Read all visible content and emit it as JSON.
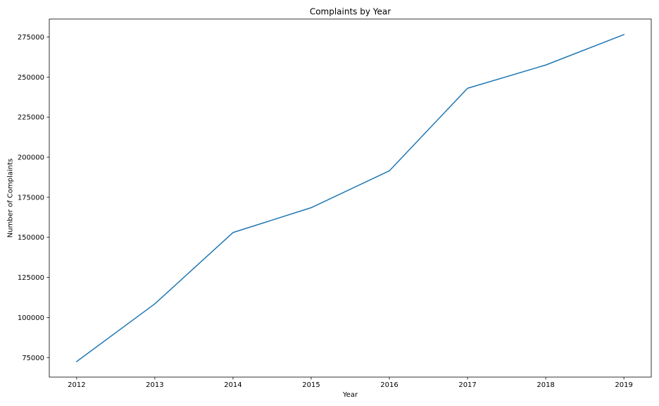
{
  "chart_data": {
    "type": "line",
    "title": "Complaints by Year",
    "xlabel": "Year",
    "ylabel": "Number of Complaints",
    "categories": [
      "2012",
      "2013",
      "2014",
      "2015",
      "2016",
      "2017",
      "2018",
      "2019"
    ],
    "series": [
      {
        "values": [
          72500,
          108500,
          153000,
          168500,
          191500,
          243000,
          257500,
          276500
        ],
        "color": "#1f77b4"
      }
    ],
    "yticks": [
      75000,
      100000,
      125000,
      150000,
      175000,
      200000,
      225000,
      250000,
      275000
    ],
    "ytick_labels": [
      "75000",
      "100000",
      "125000",
      "150000",
      "175000",
      "200000",
      "225000",
      "250000",
      "275000"
    ],
    "ylim": [
      62800,
      286200
    ],
    "xlim": [
      2011.65,
      2019.35
    ],
    "grid": false,
    "legend": false
  }
}
